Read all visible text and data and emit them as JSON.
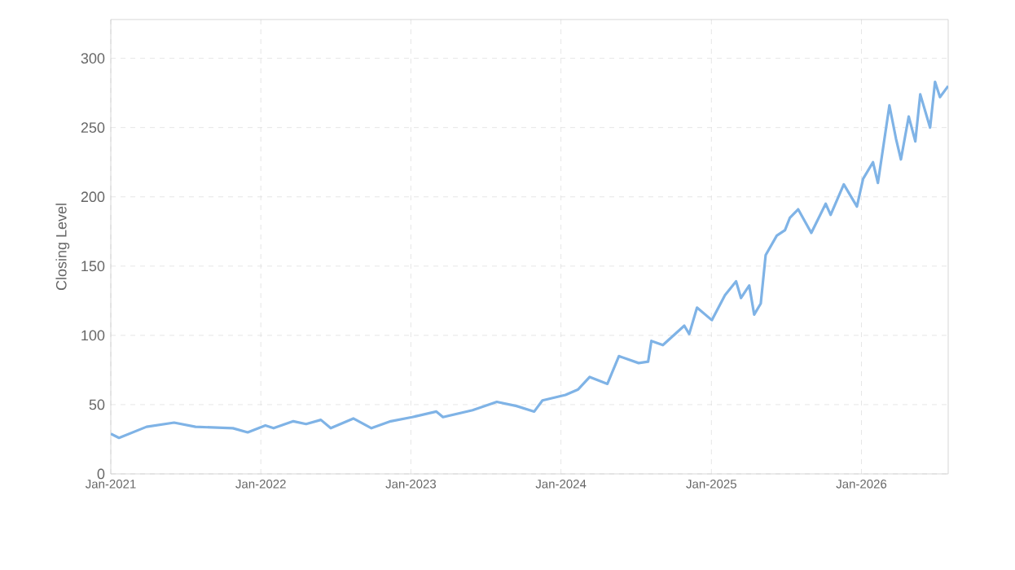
{
  "chart_data": {
    "type": "line",
    "ylabel": "Closing Level",
    "color": "#7fb3e6",
    "grid": true,
    "x": [
      "2021-01-01",
      "2021-01-21",
      "2021-03-29",
      "2021-06-04",
      "2021-07-26",
      "2021-10-25",
      "2021-11-30",
      "2022-01-12",
      "2022-02-01",
      "2022-03-21",
      "2022-04-21",
      "2022-05-27",
      "2022-06-20",
      "2022-08-14",
      "2022-09-27",
      "2022-11-13",
      "2023-01-04",
      "2023-03-04",
      "2023-03-20",
      "2023-05-31",
      "2023-07-29",
      "2023-09-15",
      "2023-10-28",
      "2023-11-17",
      "2024-01-12",
      "2024-02-12",
      "2024-03-11",
      "2024-04-23",
      "2024-05-21",
      "2024-07-08",
      "2024-07-31",
      "2024-08-08",
      "2024-09-05",
      "2024-10-27",
      "2024-11-08",
      "2024-11-27",
      "2025-01-02",
      "2025-02-03",
      "2025-03-02",
      "2025-03-14",
      "2025-04-03",
      "2025-04-15",
      "2025-05-01",
      "2025-05-13",
      "2025-06-09",
      "2025-06-29",
      "2025-07-11",
      "2025-07-31",
      "2025-09-01",
      "2025-10-06",
      "2025-10-18",
      "2025-11-19",
      "2025-12-21",
      "2026-01-05",
      "2026-01-29",
      "2026-02-10",
      "2026-03-10",
      "2026-03-26",
      "2026-04-07",
      "2026-04-26",
      "2026-05-12",
      "2026-05-24",
      "2026-06-17",
      "2026-06-29",
      "2026-07-11",
      "2026-07-31"
    ],
    "values": [
      29,
      26,
      34,
      37,
      34,
      33,
      30,
      35,
      33,
      38,
      36,
      39,
      33,
      40,
      33,
      38,
      41,
      45,
      41,
      46,
      52,
      49,
      45,
      53,
      57,
      61,
      70,
      65,
      85,
      80,
      81,
      96,
      93,
      107,
      101,
      120,
      111,
      129,
      139,
      127,
      136,
      115,
      123,
      158,
      172,
      176,
      185,
      191,
      174,
      195,
      187,
      209,
      193,
      213,
      225,
      210,
      266,
      242,
      227,
      258,
      240,
      274,
      250,
      283,
      272,
      280
    ],
    "xlim": [
      "2021-01-01",
      "2026-07-31"
    ],
    "xticks": [
      {
        "value": "2021-01-01",
        "label": "Jan-2021"
      },
      {
        "value": "2022-01-01",
        "label": "Jan-2022"
      },
      {
        "value": "2023-01-01",
        "label": "Jan-2023"
      },
      {
        "value": "2024-01-01",
        "label": "Jan-2024"
      },
      {
        "value": "2025-01-01",
        "label": "Jan-2025"
      },
      {
        "value": "2026-01-01",
        "label": "Jan-2026"
      }
    ],
    "ylim": [
      0,
      328
    ],
    "yticks": [
      0,
      50,
      100,
      150,
      200,
      250,
      300
    ]
  }
}
